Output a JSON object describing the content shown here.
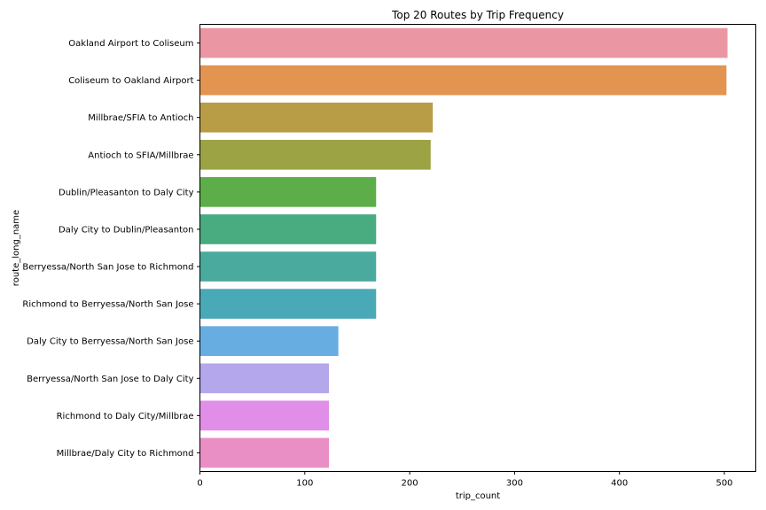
{
  "chart_data": {
    "type": "bar",
    "orientation": "horizontal",
    "title": "Top 20 Routes by Trip Frequency",
    "xlabel": "trip_count",
    "ylabel": "route_long_name",
    "xlim": [
      0,
      530
    ],
    "xticks": [
      0,
      100,
      200,
      300,
      400,
      500
    ],
    "xtick_labels": [
      "0",
      "100",
      "200",
      "300",
      "400",
      "500"
    ],
    "grid": false,
    "categories": [
      "Oakland Airport to Coliseum",
      "Coliseum to Oakland Airport",
      "Millbrae/SFIA to Antioch",
      "Antioch to SFIA/Millbrae",
      "Dublin/Pleasanton to Daly City",
      "Daly City to Dublin/Pleasanton",
      "Berryessa/North San Jose to Richmond",
      "Richmond to Berryessa/North San Jose",
      "Daly City to Berryessa/North San Jose",
      "Berryessa/North San Jose to Daly City",
      "Richmond to Daly City/Millbrae",
      "Millbrae/Daly City to Richmond"
    ],
    "values": [
      503,
      502,
      222,
      220,
      168,
      168,
      168,
      168,
      132,
      123,
      123,
      123
    ],
    "colors": [
      "#ea96a3",
      "#e29450",
      "#b99c46",
      "#9ba345",
      "#5dae48",
      "#49ab80",
      "#4aaa9d",
      "#4aa9b6",
      "#68ade2",
      "#b5a7ec",
      "#e08ee8",
      "#e98fc6"
    ]
  }
}
